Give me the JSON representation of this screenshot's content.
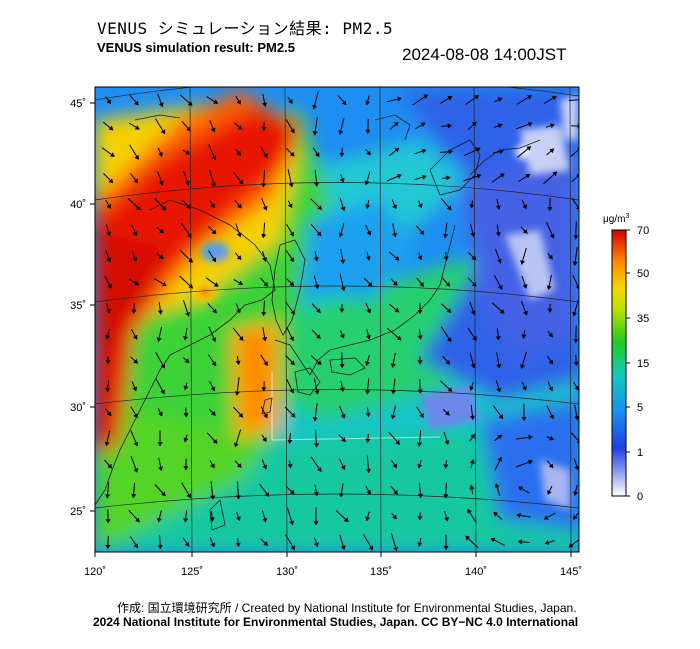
{
  "header": {
    "title_jp": "VENUS シミュレーション結果: PM2.5",
    "title_en": "VENUS simulation result: PM2.5",
    "timestamp": "2024-08-08 14:00JST"
  },
  "map": {
    "lon_labels": [
      "120˚",
      "125˚",
      "130˚",
      "135˚",
      "140˚",
      "145˚"
    ],
    "lat_labels": [
      "45˚",
      "40˚",
      "35˚",
      "30˚",
      "25˚"
    ],
    "lon_range": [
      120,
      145
    ],
    "lat_range": [
      23,
      46
    ]
  },
  "colorbar": {
    "unit": "μg/m",
    "unit_sup": "3",
    "labels": [
      "70",
      "50",
      "35",
      "15",
      "5",
      "1",
      "0"
    ],
    "colors": [
      "#d40000",
      "#ff3000",
      "#ff8a00",
      "#f5d800",
      "#22cc22",
      "#10c8b8",
      "#1a78e8",
      "#2040e0",
      "#8090ee",
      "#ffffff"
    ]
  },
  "footer": {
    "credit": "作成: 国立環境研究所 / Created by National Institute for Environmental Studies, Japan.",
    "license": "2024 National Institute for Environmental Studies, Japan. CC BY−NC 4.0 International"
  }
}
